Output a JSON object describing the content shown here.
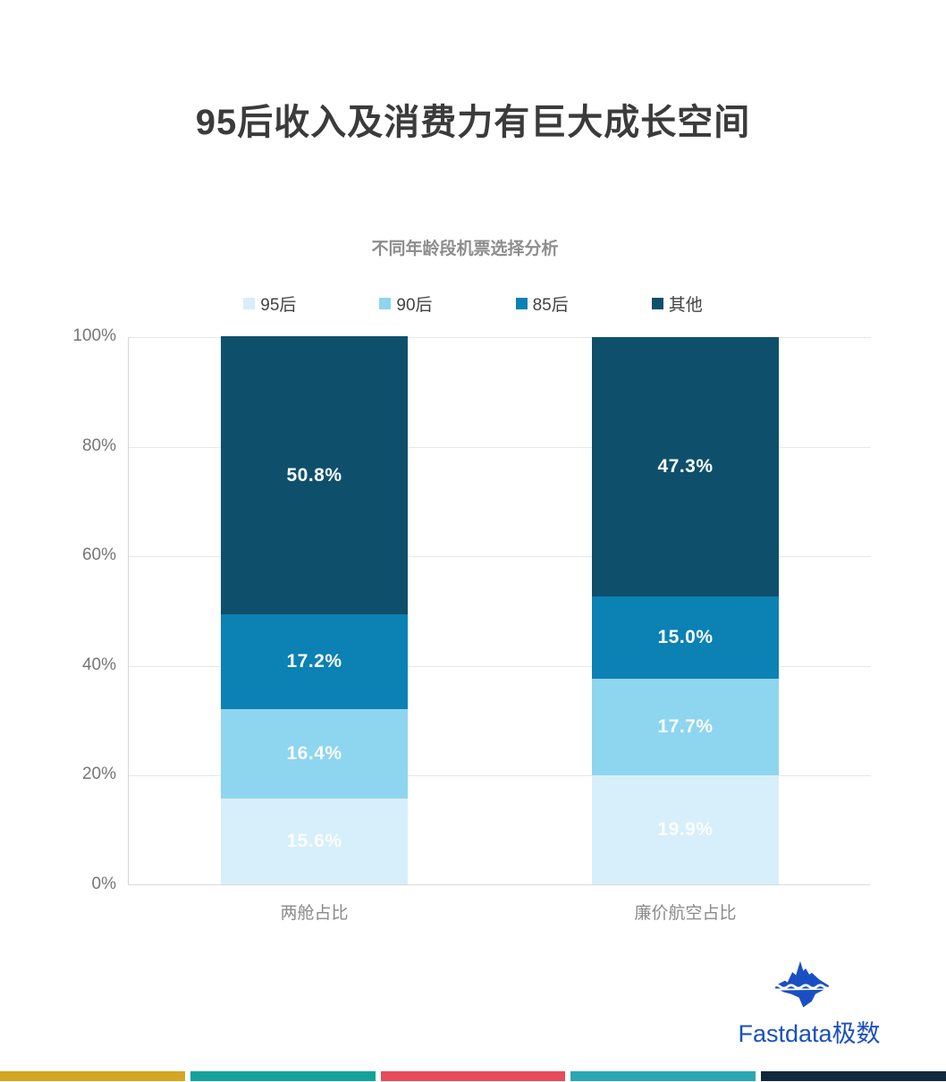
{
  "page": {
    "title": "95后收入及消费力有巨大成长空间"
  },
  "chart_data": {
    "type": "bar",
    "stacked": true,
    "title": "不同年龄段机票选择分析",
    "categories": [
      "两舱占比",
      "廉价航空占比"
    ],
    "series": [
      {
        "name": "95后",
        "color": "#d7effa",
        "values": [
          15.6,
          19.9
        ]
      },
      {
        "name": "90后",
        "color": "#8ed5ef",
        "values": [
          16.4,
          17.7
        ]
      },
      {
        "name": "85后",
        "color": "#0b81b4",
        "values": [
          17.2,
          15.0
        ]
      },
      {
        "name": "其他",
        "color": "#0e506b",
        "values": [
          50.8,
          47.3
        ]
      }
    ],
    "value_suffix": "%",
    "ylim": [
      0,
      100
    ],
    "yticks": [
      "0%",
      "20%",
      "40%",
      "60%",
      "80%",
      "100%"
    ],
    "grid": true,
    "legend_position": "top",
    "labels_on_segments": true
  },
  "footer": {
    "brand": "Fastdata极数",
    "brand_color": "#1a4fc3",
    "stripe_colors": [
      "#d5a622",
      "#14a29a",
      "#e84b5b",
      "#2ba6b4",
      "#12283c"
    ]
  }
}
